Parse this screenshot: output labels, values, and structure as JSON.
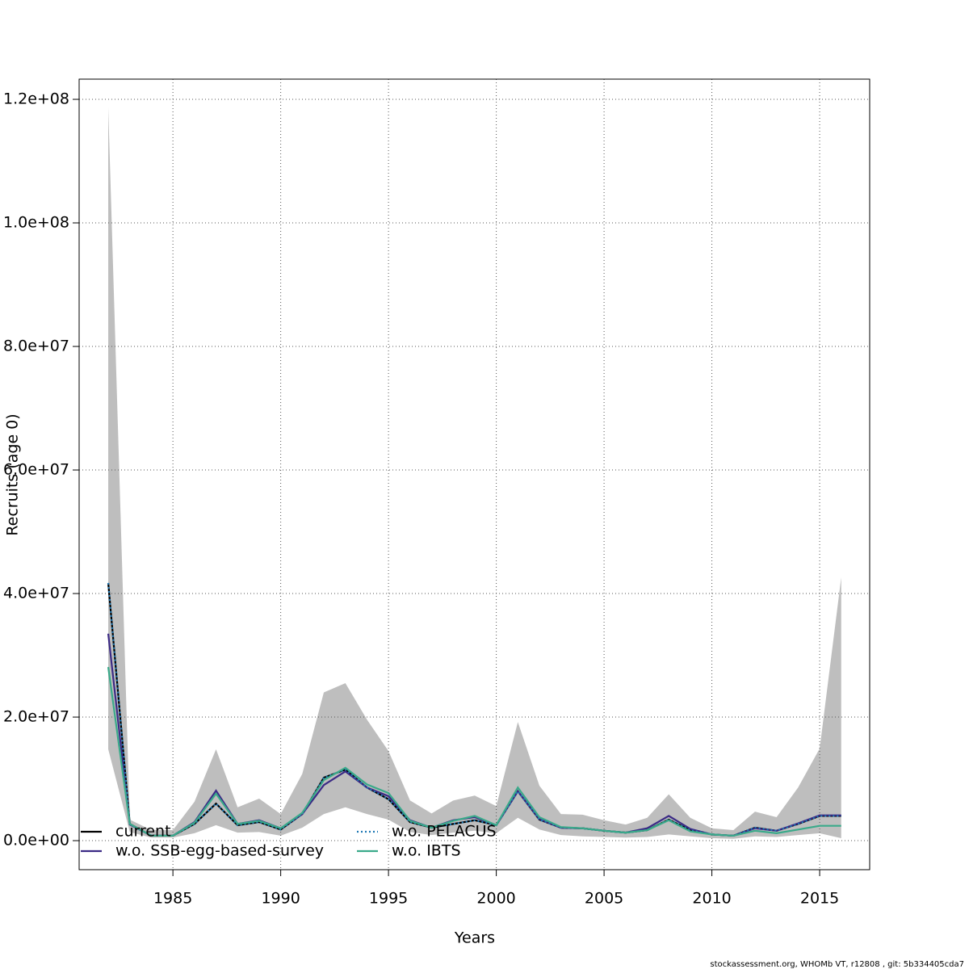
{
  "chart_data": {
    "type": "line",
    "xlabel": "Years",
    "ylabel": "Recruits (age 0)",
    "footer": "stockassessment.org, WHOMb VT, r12808 , git: 5b334405cda7",
    "x": [
      1982,
      1983,
      1984,
      1985,
      1986,
      1987,
      1988,
      1989,
      1990,
      1991,
      1992,
      1993,
      1994,
      1995,
      1996,
      1997,
      1998,
      1999,
      2000,
      2001,
      2002,
      2003,
      2004,
      2005,
      2006,
      2007,
      2008,
      2009,
      2010,
      2011,
      2012,
      2013,
      2014,
      2015,
      2016
    ],
    "band": {
      "color": "#bebebe",
      "upper": [
        118700000,
        3400000,
        1700000,
        1700000,
        6300000,
        14800000,
        5400000,
        6800000,
        4300000,
        10800000,
        24000000,
        25500000,
        19600000,
        14500000,
        6500000,
        4400000,
        6500000,
        7300000,
        5600000,
        19200000,
        8900000,
        4300000,
        4200000,
        3300000,
        2600000,
        3700000,
        7500000,
        3700000,
        2000000,
        1700000,
        4700000,
        3800000,
        8600000,
        14900000,
        42600000
      ],
      "lower": [
        14800000,
        1400000,
        500000,
        500000,
        1200000,
        2500000,
        1300000,
        1400000,
        800000,
        2100000,
        4300000,
        5400000,
        4300000,
        3400000,
        1400000,
        900000,
        1300000,
        1600000,
        1200000,
        3700000,
        1800000,
        900000,
        700000,
        600000,
        500000,
        600000,
        1000000,
        700000,
        400000,
        300000,
        700000,
        600000,
        900000,
        1200000,
        400000
      ]
    },
    "series": [
      {
        "name": "current",
        "color": "#000000",
        "dash": "solid",
        "values": [
          41700000,
          2700000,
          800000,
          800000,
          2700000,
          6000000,
          2500000,
          3000000,
          1800000,
          4300000,
          10200000,
          11500000,
          8600000,
          6700000,
          3000000,
          2100000,
          2700000,
          3300000,
          2500000,
          8000000,
          3400000,
          2100000,
          2000000,
          1600000,
          1300000,
          1700000,
          3400000,
          1700000,
          1000000,
          800000,
          2100000,
          1600000,
          2700000,
          4000000,
          4000000
        ]
      },
      {
        "name": "w.o. SSB-egg-based-survey",
        "color": "#3b2a85",
        "dash": "solid",
        "values": [
          33500000,
          2600000,
          800000,
          800000,
          3000000,
          8100000,
          2700000,
          3300000,
          2000000,
          4300000,
          9000000,
          11200000,
          8600000,
          7200000,
          3300000,
          2100000,
          3300000,
          3800000,
          2500000,
          8000000,
          3500000,
          2100000,
          2000000,
          1600000,
          1300000,
          2000000,
          4000000,
          1900000,
          1000000,
          800000,
          2000000,
          1600000,
          2800000,
          4100000,
          4100000
        ]
      },
      {
        "name": "w.o. PELACUS",
        "color": "#1f78b4",
        "dash": "dotted",
        "values": [
          41700000,
          2700000,
          800000,
          800000,
          2700000,
          6000000,
          2500000,
          3000000,
          1800000,
          4300000,
          10200000,
          11500000,
          8600000,
          6700000,
          3000000,
          2100000,
          2700000,
          3300000,
          2500000,
          8000000,
          3400000,
          2100000,
          2000000,
          1600000,
          1300000,
          1700000,
          3400000,
          1700000,
          1000000,
          800000,
          2100000,
          1600000,
          2700000,
          4000000,
          4000000
        ]
      },
      {
        "name": "w.o. IBTS",
        "color": "#3aaa8a",
        "dash": "solid",
        "values": [
          28100000,
          2700000,
          800000,
          800000,
          2900000,
          7600000,
          2700000,
          3200000,
          2000000,
          4500000,
          9800000,
          11800000,
          9100000,
          7700000,
          3200000,
          2100000,
          3200000,
          4000000,
          2500000,
          8600000,
          3800000,
          2200000,
          2000000,
          1600000,
          1300000,
          1700000,
          3300000,
          1500000,
          1000000,
          800000,
          1600000,
          1200000,
          1800000,
          2400000,
          2400000
        ]
      }
    ],
    "xlim": [
      1980.65,
      2017.32
    ],
    "xticks": [
      1985,
      1990,
      1995,
      2000,
      2005,
      2010,
      2015
    ],
    "ylim": [
      -4700000,
      123270000
    ],
    "yticks": [
      {
        "value": 0,
        "label": "0.0e+00"
      },
      {
        "value": 20000000,
        "label": "2.0e+07"
      },
      {
        "value": 40000000,
        "label": "4.0e+07"
      },
      {
        "value": 60000000,
        "label": "6.0e+07"
      },
      {
        "value": 80000000,
        "label": "8.0e+07"
      },
      {
        "value": 100000000,
        "label": "1.0e+08"
      },
      {
        "value": 120000000,
        "label": "1.2e+08"
      }
    ],
    "grid": true,
    "legend": "bottomleft"
  }
}
